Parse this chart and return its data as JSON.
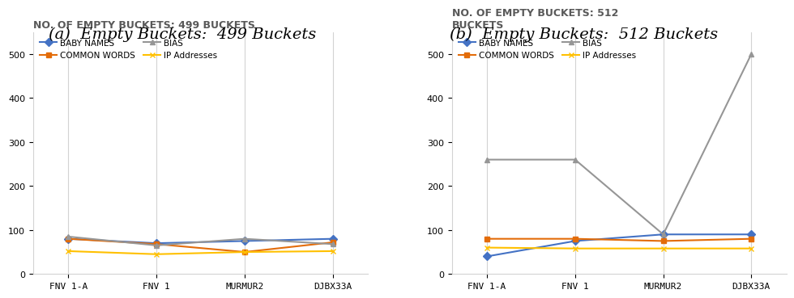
{
  "categories": [
    "FNV 1-A",
    "FNV 1",
    "MURMUR2",
    "DJBX33A"
  ],
  "chart_a": {
    "title_outer": "(a)  Empty Buckets:  499 Buckets",
    "title_inner": "NO. OF EMPTY BUCKETS: 499 BUCKETS",
    "ylim": [
      0,
      550
    ],
    "yticks": [
      0,
      100,
      200,
      300,
      400,
      500
    ],
    "series": {
      "BABY NAMES": [
        80,
        70,
        75,
        80
      ],
      "COMMON WORDS": [
        80,
        68,
        50,
        72
      ],
      "BIAS": [
        85,
        65,
        80,
        68
      ],
      "IP Addresses": [
        52,
        45,
        50,
        52
      ]
    }
  },
  "chart_b": {
    "title_outer": "(b)  Empty Buckets:  512 Buckets",
    "title_inner": "NO. OF EMPTY BUCKETS: 512\nBUCKETS",
    "ylim": [
      0,
      550
    ],
    "yticks": [
      0,
      100,
      200,
      300,
      400,
      500
    ],
    "series": {
      "BABY NAMES": [
        40,
        75,
        90,
        90
      ],
      "COMMON WORDS": [
        80,
        80,
        75,
        80
      ],
      "BIAS": [
        260,
        260,
        90,
        500
      ],
      "IP Addresses": [
        60,
        58,
        58,
        58
      ]
    }
  },
  "colors": {
    "BABY NAMES": "#4472c4",
    "COMMON WORDS": "#e36c09",
    "BIAS": "#969696",
    "IP Addresses": "#ffc000"
  },
  "markers": {
    "BABY NAMES": "D",
    "COMMON WORDS": "s",
    "BIAS": "^",
    "IP Addresses": "x"
  },
  "legend_order": [
    "BABY NAMES",
    "COMMON WORDS",
    "BIAS",
    "IP Addresses"
  ],
  "outer_title_fontsize": 14,
  "inner_title_fontsize": 9,
  "tick_fontsize": 8,
  "legend_fontsize": 7.5,
  "background_color": "#ffffff"
}
